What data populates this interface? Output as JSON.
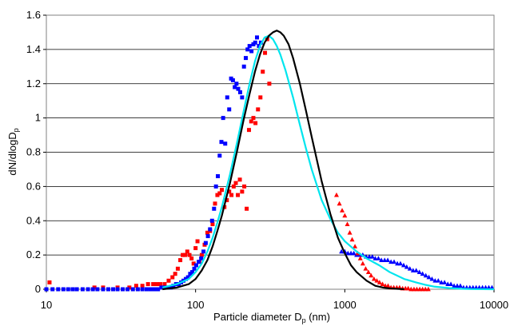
{
  "chart_data": {
    "type": "scatter",
    "xlabel": "Particle diameter D",
    "xlabel_sub": "p",
    "xlabel_unit": " (nm)",
    "ylabel": "dN/dlogD",
    "ylabel_sub": "p",
    "x_scale": "log",
    "xlim": [
      10,
      10000
    ],
    "ylim": [
      0,
      1.6
    ],
    "x_ticks": [
      10,
      100,
      1000,
      10000
    ],
    "x_tick_labels": [
      "10",
      "100",
      "1000",
      "10000"
    ],
    "y_ticks": [
      0,
      0.2,
      0.4,
      0.6,
      0.8,
      1,
      1.2,
      1.4,
      1.6
    ],
    "y_tick_labels": [
      "0",
      "0.2",
      "0.4",
      "0.6",
      "0.8",
      "1",
      "1.2",
      "1.4",
      "1.6"
    ],
    "grid": "horizontal",
    "legend": "none",
    "colors": {
      "red_squares": "#ff0000",
      "blue_squares": "#0000ff",
      "blue_triangles": "#0000ff",
      "red_triangles": "#ff0000",
      "black_fit": "#000000",
      "cyan_fit": "#00e5ee"
    },
    "series": [
      {
        "marker": "square",
        "color_key": "red_squares",
        "x": [
          10.5,
          21,
          24,
          30,
          36,
          40,
          44,
          48,
          52,
          55,
          58,
          62,
          66,
          70,
          73,
          76,
          79,
          82,
          85,
          88,
          91,
          94,
          97,
          100,
          103,
          106,
          110,
          115,
          120,
          125,
          130,
          135,
          140,
          145,
          150,
          156,
          162,
          168,
          174,
          180,
          186,
          192,
          198,
          205,
          212,
          220,
          228,
          236,
          244,
          252,
          262,
          272,
          282,
          292,
          302,
          312
        ],
        "y": [
          0.04,
          0.01,
          0.01,
          0.01,
          0.01,
          0.02,
          0.02,
          0.03,
          0.03,
          0.03,
          0.03,
          0.03,
          0.05,
          0.07,
          0.09,
          0.12,
          0.17,
          0.2,
          0.2,
          0.22,
          0.2,
          0.18,
          0.15,
          0.24,
          0.28,
          0.16,
          0.2,
          0.26,
          0.33,
          0.34,
          0.38,
          0.5,
          0.55,
          0.56,
          0.58,
          0.48,
          0.52,
          0.57,
          0.55,
          0.6,
          0.62,
          0.55,
          0.64,
          0.57,
          0.6,
          0.47,
          0.93,
          0.98,
          1.0,
          0.97,
          1.05,
          1.12,
          1.27,
          1.38,
          1.46,
          1.2
        ]
      },
      {
        "marker": "square",
        "color_key": "blue_squares",
        "x": [
          10,
          11,
          12,
          13,
          14,
          15,
          16,
          17.5,
          19,
          20.5,
          22,
          24,
          26,
          28,
          30,
          32.5,
          35,
          38,
          41,
          44,
          47,
          50,
          53,
          56,
          59,
          62,
          65,
          68,
          71,
          74,
          77,
          80,
          83,
          86,
          89,
          92,
          95,
          98,
          101,
          105,
          109,
          113,
          117,
          121,
          125,
          129,
          133,
          137,
          141,
          145,
          149,
          153,
          158,
          163,
          168,
          173,
          178,
          183,
          188,
          193,
          199,
          205,
          211,
          217,
          223,
          230,
          237,
          244,
          251,
          258,
          266,
          274
        ],
        "y": [
          0,
          0,
          0,
          0,
          0,
          0,
          0,
          0,
          0,
          0,
          0,
          0,
          0,
          0,
          0,
          0,
          0,
          0,
          0,
          0,
          0,
          0,
          0,
          0,
          0.01,
          0.01,
          0.01,
          0.01,
          0.02,
          0.03,
          0.03,
          0.04,
          0.05,
          0.06,
          0.07,
          0.09,
          0.1,
          0.12,
          0.14,
          0.16,
          0.18,
          0.22,
          0.27,
          0.31,
          0.35,
          0.4,
          0.47,
          0.6,
          0.66,
          0.78,
          0.86,
          1.0,
          0.85,
          1.12,
          1.05,
          1.23,
          1.22,
          1.18,
          1.2,
          1.17,
          1.15,
          1.12,
          1.3,
          1.35,
          1.4,
          1.42,
          1.39,
          1.43,
          1.44,
          1.47,
          1.42,
          1.44
        ]
      },
      {
        "marker": "triangle",
        "color_key": "blue_triangles",
        "x": [
          950,
          1000,
          1050,
          1100,
          1150,
          1200,
          1260,
          1320,
          1390,
          1460,
          1530,
          1600,
          1680,
          1760,
          1850,
          1940,
          2040,
          2140,
          2250,
          2360,
          2480,
          2600,
          2730,
          2870,
          3010,
          3160,
          3320,
          3490,
          3660,
          3840,
          4030,
          4230,
          4440,
          4660,
          4900,
          5140,
          5400,
          5670,
          5950,
          6250,
          6560,
          6890,
          7230,
          7590,
          7970,
          8370,
          8790,
          9230,
          9690
        ],
        "y": [
          0.22,
          0.22,
          0.21,
          0.21,
          0.21,
          0.2,
          0.2,
          0.2,
          0.19,
          0.19,
          0.19,
          0.18,
          0.18,
          0.17,
          0.17,
          0.17,
          0.16,
          0.16,
          0.15,
          0.15,
          0.14,
          0.13,
          0.12,
          0.11,
          0.11,
          0.1,
          0.09,
          0.08,
          0.07,
          0.06,
          0.05,
          0.05,
          0.04,
          0.04,
          0.03,
          0.03,
          0.02,
          0.02,
          0.02,
          0.01,
          0.01,
          0.01,
          0.01,
          0.01,
          0.01,
          0.01,
          0.01,
          0.01,
          0.01
        ]
      },
      {
        "marker": "triangle",
        "color_key": "red_triangles",
        "x": [
          880,
          920,
          960,
          1000,
          1040,
          1080,
          1120,
          1170,
          1220,
          1270,
          1320,
          1380,
          1440,
          1500,
          1570,
          1640,
          1710,
          1790,
          1870,
          1950,
          2040,
          2130,
          2230,
          2330,
          2440,
          2550,
          2660,
          2780,
          2910,
          3040,
          3180,
          3320,
          3470,
          3630
        ],
        "y": [
          0.55,
          0.5,
          0.46,
          0.43,
          0.38,
          0.33,
          0.29,
          0.25,
          0.21,
          0.18,
          0.15,
          0.12,
          0.1,
          0.08,
          0.06,
          0.05,
          0.04,
          0.03,
          0.02,
          0.02,
          0.01,
          0.01,
          0.01,
          0.01,
          0.005,
          0.005,
          0.005,
          0.0,
          0.0,
          0.0,
          0.0,
          0.0,
          0.0,
          0.0
        ]
      },
      {
        "marker": "line",
        "color_key": "black_fit",
        "x": [
          60,
          75,
          90,
          100,
          110,
          120,
          130,
          140,
          150,
          170,
          190,
          210,
          230,
          250,
          270,
          290,
          310,
          330,
          350,
          370,
          390,
          420,
          450,
          500,
          550,
          600,
          700,
          800,
          900,
          1000,
          1100,
          1200,
          1400,
          1600,
          1800,
          2000,
          2500
        ],
        "y": [
          0,
          0.01,
          0.03,
          0.06,
          0.11,
          0.17,
          0.25,
          0.34,
          0.43,
          0.62,
          0.81,
          0.99,
          1.14,
          1.27,
          1.37,
          1.44,
          1.48,
          1.5,
          1.51,
          1.5,
          1.48,
          1.43,
          1.35,
          1.2,
          1.04,
          0.89,
          0.63,
          0.44,
          0.3,
          0.21,
          0.14,
          0.1,
          0.05,
          0.02,
          0.01,
          0.005,
          0
        ]
      },
      {
        "marker": "line",
        "color_key": "cyan_fit",
        "x": [
          60,
          75,
          90,
          100,
          110,
          120,
          130,
          140,
          150,
          170,
          190,
          210,
          230,
          250,
          270,
          290,
          310,
          330,
          350,
          370,
          400,
          450,
          500,
          550,
          600,
          700,
          800,
          900,
          1000,
          1200,
          1400,
          1700,
          2000,
          2500,
          3000,
          3500,
          4000,
          5000,
          6000,
          7000,
          10000
        ],
        "y": [
          0.01,
          0.03,
          0.06,
          0.1,
          0.15,
          0.22,
          0.3,
          0.39,
          0.48,
          0.67,
          0.86,
          1.04,
          1.2,
          1.33,
          1.42,
          1.47,
          1.48,
          1.46,
          1.42,
          1.37,
          1.28,
          1.12,
          0.96,
          0.82,
          0.7,
          0.52,
          0.41,
          0.33,
          0.28,
          0.22,
          0.18,
          0.14,
          0.1,
          0.06,
          0.04,
          0.025,
          0.015,
          0.007,
          0.003,
          0.001,
          0
        ]
      }
    ]
  }
}
